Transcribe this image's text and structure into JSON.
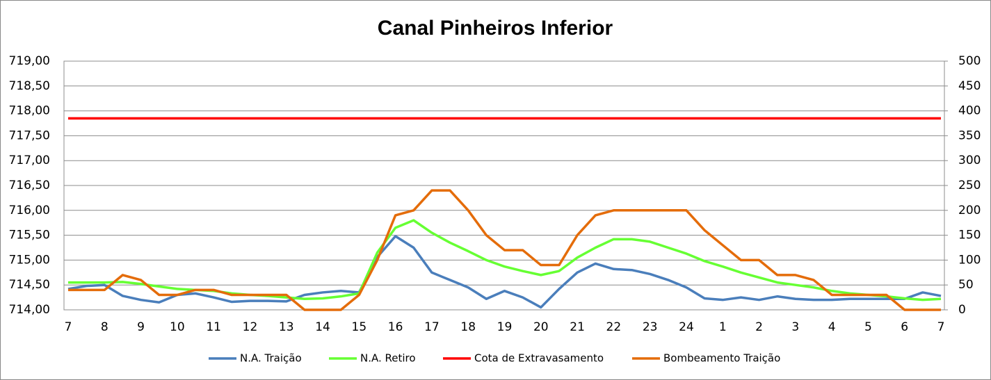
{
  "chart_data": {
    "type": "line",
    "title": "Canal Pinheiros Inferior",
    "categories": [
      "7",
      null,
      "8",
      null,
      "9",
      null,
      "10",
      null,
      "11",
      null,
      "12",
      null,
      "13",
      null,
      "14",
      null,
      "15",
      null,
      "16",
      null,
      "17",
      null,
      "18",
      null,
      "19",
      null,
      "20",
      null,
      "21",
      null,
      "22",
      null,
      "23",
      null,
      "24",
      null,
      "1",
      null,
      "2",
      null,
      "3",
      null,
      "4",
      null,
      "5",
      null,
      "6",
      null,
      "7"
    ],
    "series": [
      {
        "name": "N.A. Traição",
        "color": "#4a7ebb",
        "values": [
          714.42,
          714.48,
          714.5,
          714.28,
          714.2,
          714.15,
          714.3,
          714.33,
          714.25,
          714.16,
          714.18,
          714.18,
          714.17,
          714.3,
          714.35,
          714.38,
          714.35,
          715.06,
          715.48,
          715.25,
          714.75,
          714.6,
          714.45,
          714.22,
          714.38,
          714.25,
          714.05,
          714.42,
          714.75,
          714.93,
          714.82,
          714.8,
          714.72,
          714.6,
          714.45,
          714.23,
          714.2,
          714.25,
          714.2,
          714.27,
          714.22,
          714.2,
          714.2,
          714.22,
          714.22,
          714.22,
          714.22,
          714.35,
          714.28
        ]
      },
      {
        "name": "N.A. Retiro",
        "color": "#66ff33",
        "values": [
          714.55,
          714.55,
          714.55,
          714.56,
          714.52,
          714.47,
          714.42,
          714.4,
          714.38,
          714.33,
          714.3,
          714.28,
          714.25,
          714.22,
          714.23,
          714.27,
          714.33,
          715.15,
          715.65,
          715.8,
          715.55,
          715.35,
          715.18,
          715.0,
          714.87,
          714.78,
          714.7,
          714.78,
          715.05,
          715.25,
          715.42,
          715.42,
          715.37,
          715.25,
          715.13,
          714.98,
          714.87,
          714.75,
          714.65,
          714.55,
          714.5,
          714.45,
          714.38,
          714.33,
          714.3,
          714.27,
          714.23,
          714.2,
          714.22
        ]
      },
      {
        "name": "Cota de Extravasamento",
        "color": "#ff0000",
        "values": [
          717.85,
          717.85,
          717.85,
          717.85,
          717.85,
          717.85,
          717.85,
          717.85,
          717.85,
          717.85,
          717.85,
          717.85,
          717.85,
          717.85,
          717.85,
          717.85,
          717.85,
          717.85,
          717.85,
          717.85,
          717.85,
          717.85,
          717.85,
          717.85,
          717.85,
          717.85,
          717.85,
          717.85,
          717.85,
          717.85,
          717.85,
          717.85,
          717.85,
          717.85,
          717.85,
          717.85,
          717.85,
          717.85,
          717.85,
          717.85,
          717.85,
          717.85,
          717.85,
          717.85,
          717.85,
          717.85,
          717.85,
          717.85,
          717.85
        ]
      },
      {
        "name": "Bombeamento Traição",
        "color": "#e46c0a",
        "axis": "y2",
        "values": [
          40,
          40,
          40,
          70,
          60,
          30,
          30,
          40,
          40,
          30,
          30,
          30,
          30,
          0,
          0,
          0,
          30,
          100,
          190,
          200,
          240,
          240,
          200,
          150,
          120,
          120,
          90,
          90,
          150,
          190,
          200,
          200,
          200,
          200,
          200,
          160,
          130,
          100,
          100,
          70,
          70,
          60,
          30,
          30,
          30,
          30,
          0,
          0,
          0
        ]
      }
    ],
    "ylim": [
      714,
      719
    ],
    "yticks": [
      {
        "value": 714,
        "label": "714,00"
      },
      {
        "value": 714.5,
        "label": "714,50"
      },
      {
        "value": 715,
        "label": "715,00"
      },
      {
        "value": 715.5,
        "label": "715,50"
      },
      {
        "value": 716,
        "label": "716,00"
      },
      {
        "value": 716.5,
        "label": "716,50"
      },
      {
        "value": 717,
        "label": "717,00"
      },
      {
        "value": 717.5,
        "label": "717,50"
      },
      {
        "value": 718,
        "label": "718,00"
      },
      {
        "value": 718.5,
        "label": "718,50"
      },
      {
        "value": 719,
        "label": "719,00"
      }
    ],
    "y2lim": [
      0,
      500
    ],
    "y2ticks": [
      0,
      50,
      100,
      150,
      200,
      250,
      300,
      350,
      400,
      450,
      500
    ],
    "grid": true,
    "legend": "bottom"
  }
}
